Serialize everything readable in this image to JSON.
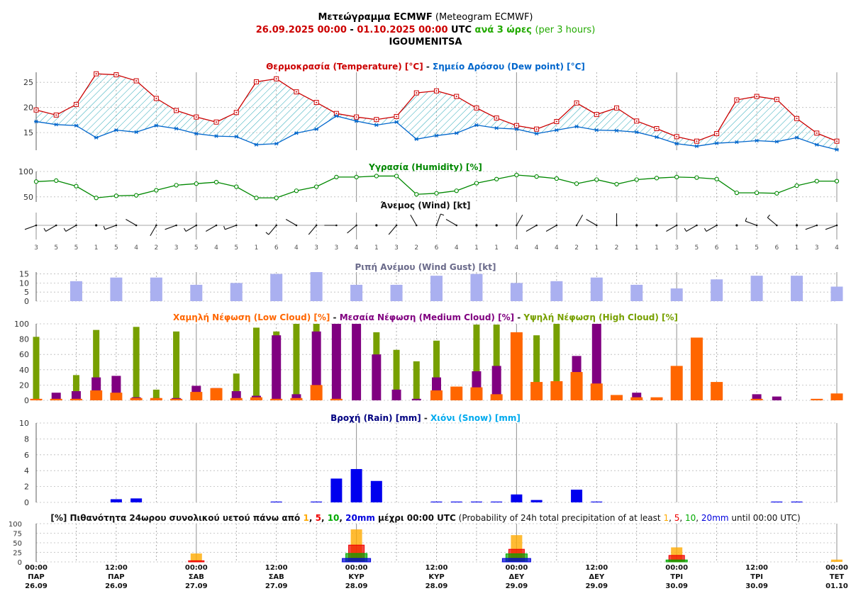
{
  "header": {
    "title_gr": "Μετεώγραμμα ECMWF",
    "title_en": "(Meteogram ECMWF)",
    "period_from": "26.09.2025 00:00",
    "dash": "-",
    "period_to": "01.10.2025 00:00",
    "utc": "UTC",
    "step_gr": "ανά 3 ώρες",
    "step_en": "(per 3 hours)",
    "location": "IGOUMENITSA"
  },
  "colors": {
    "temperature": "#cc0000",
    "dewpoint": "#0066cc",
    "humidity": "#008800",
    "gust": "#aab0f0",
    "low_cloud": "#ff6600",
    "medium_cloud": "#800080",
    "high_cloud": "#77a000",
    "rain": "#0000ee",
    "snow": "#00aaee",
    "prob_1mm": "#ffaa00",
    "prob_5mm": "#ee0000",
    "prob_10mm": "#00aa00",
    "prob_20mm": "#0000dd"
  },
  "time_axis": {
    "ticks": [
      {
        "time": "00:00",
        "day": "ΠΑΡ",
        "date": "26.09"
      },
      {
        "time": "12:00",
        "day": "ΠΑΡ",
        "date": "26.09"
      },
      {
        "time": "00:00",
        "day": "ΣΑΒ",
        "date": "27.09"
      },
      {
        "time": "12:00",
        "day": "ΣΑΒ",
        "date": "27.09"
      },
      {
        "time": "00:00",
        "day": "ΚΥΡ",
        "date": "28.09"
      },
      {
        "time": "12:00",
        "day": "ΚΥΡ",
        "date": "28.09"
      },
      {
        "time": "00:00",
        "day": "ΔΕΥ",
        "date": "29.09"
      },
      {
        "time": "12:00",
        "day": "ΔΕΥ",
        "date": "29.09"
      },
      {
        "time": "00:00",
        "day": "ΤΡΙ",
        "date": "30.09"
      },
      {
        "time": "12:00",
        "day": "ΤΡΙ",
        "date": "30.09"
      },
      {
        "time": "00:00",
        "day": "ΤΕΤ",
        "date": "01.10"
      }
    ]
  },
  "chart_data": [
    {
      "type": "line",
      "panel": "temperature",
      "title_parts": [
        "Θερμοκρασία (Temperature) [°C]",
        " - ",
        "Σημείο Δρόσου (Dew point) [°C]"
      ],
      "ylim": [
        11.5,
        27
      ],
      "yticks": [
        15,
        20,
        25
      ],
      "series": [
        {
          "name": "Θερμοκρασία (Temperature) [°C]",
          "values": [
            19.5,
            18.5,
            20.6,
            26.7,
            26.5,
            25.3,
            21.8,
            19.4,
            18.1,
            17.1,
            19.0,
            25.1,
            25.7,
            23.1,
            21.0,
            18.8,
            18.1,
            17.6,
            18.2,
            22.9,
            23.3,
            22.2,
            19.9,
            17.9,
            16.4,
            15.7,
            17.2,
            20.9,
            18.6,
            19.9,
            17.3,
            15.8,
            14.2,
            13.3,
            14.8,
            21.5,
            22.2,
            21.6,
            17.8,
            14.9,
            13.3
          ]
        },
        {
          "name": "Σημείο Δρόσου (Dew point) [°C]",
          "values": [
            17.2,
            16.6,
            16.4,
            14.0,
            15.5,
            15.1,
            16.4,
            15.8,
            14.8,
            14.3,
            14.2,
            12.6,
            12.8,
            14.9,
            15.7,
            18.3,
            17.3,
            16.5,
            17.1,
            13.7,
            14.4,
            14.9,
            16.5,
            15.9,
            15.7,
            14.8,
            15.5,
            16.2,
            15.5,
            15.4,
            15.1,
            14.1,
            12.8,
            12.3,
            12.9,
            13.1,
            13.4,
            13.2,
            14.0,
            12.6,
            11.6
          ]
        }
      ]
    },
    {
      "type": "line",
      "panel": "humidity",
      "title": "Υγρασία (Humidity) [%]",
      "ylim": [
        40,
        100
      ],
      "yticks": [
        50,
        100
      ],
      "series": [
        {
          "name": "Υγρασία (Humidity) [%]",
          "values": [
            80,
            82,
            71,
            48,
            52,
            53,
            63,
            73,
            76,
            79,
            70,
            48,
            48,
            62,
            70,
            89,
            89,
            91,
            91,
            55,
            57,
            62,
            77,
            85,
            93,
            90,
            86,
            76,
            84,
            75,
            84,
            87,
            89,
            88,
            85,
            58,
            58,
            57,
            72,
            81,
            81
          ]
        }
      ]
    },
    {
      "type": "wind",
      "panel": "wind",
      "title": "Άνεμος (Wind) [kt]",
      "speed_labels": [
        "3",
        "5",
        "5",
        "1",
        "5",
        "4",
        "2",
        "3",
        "5",
        "4",
        "5",
        "1",
        "6",
        "4",
        "3",
        "3",
        "4",
        "1",
        "3",
        "2",
        "6",
        "4",
        "1",
        "1",
        "4",
        "4",
        "4",
        "2",
        "1",
        "2",
        "1",
        "1",
        "3",
        "5",
        "6",
        "1",
        "5",
        "6",
        "1",
        "3",
        "4"
      ],
      "direction_deg": [
        250,
        240,
        240,
        0,
        250,
        300,
        210,
        250,
        240,
        240,
        250,
        0,
        220,
        300,
        220,
        270,
        230,
        0,
        220,
        330,
        20,
        300,
        0,
        0,
        30,
        240,
        240,
        30,
        300,
        0,
        0,
        0,
        240,
        240,
        240,
        0,
        290,
        310,
        0,
        250,
        250
      ]
    },
    {
      "type": "bar",
      "panel": "gust",
      "title": "Ριπή Ανέμου (Wind Gust) [kt]",
      "ylim": [
        0,
        16
      ],
      "yticks": [
        0,
        5,
        10,
        15
      ],
      "values": [
        11,
        13,
        13,
        9,
        10,
        15,
        16,
        9,
        9,
        14,
        15,
        10,
        11,
        13,
        9,
        7,
        12,
        14,
        14,
        8
      ]
    },
    {
      "type": "bar",
      "panel": "clouds",
      "title_parts": [
        "Χαμηλή Νέφωση (Low Cloud) [%]",
        " - ",
        "Μεσαία Νέφωση (Medium Cloud) [%]",
        " - ",
        "Υψηλή Νέφωση (High Cloud) [%]"
      ],
      "ylim": [
        0,
        100
      ],
      "yticks": [
        0,
        20,
        40,
        60,
        80,
        100
      ],
      "series": [
        {
          "name": "Υψηλή Νέφωση (High Cloud) [%]",
          "values": [
            83,
            0,
            33,
            92,
            0,
            96,
            14,
            90,
            0,
            0,
            35,
            95,
            90,
            100,
            100,
            0,
            0,
            89,
            66,
            51,
            78,
            0,
            99,
            99,
            0,
            85,
            100,
            0,
            0,
            0,
            0,
            0,
            0,
            0,
            0,
            0,
            0,
            0,
            0,
            0,
            0
          ]
        },
        {
          "name": "Μεσαία Νέφωση (Medium Cloud) [%]",
          "values": [
            0,
            10,
            12,
            30,
            32,
            4,
            3,
            3,
            19,
            16,
            12,
            6,
            85,
            8,
            90,
            100,
            100,
            60,
            14,
            2,
            30,
            0,
            38,
            45,
            0,
            0,
            0,
            58,
            100,
            0,
            10,
            0,
            0,
            0,
            0,
            0,
            8,
            5,
            0,
            0,
            0
          ]
        },
        {
          "name": "Χαμηλή Νέφωση (Low Cloud) [%]",
          "values": [
            2,
            2,
            2,
            13,
            10,
            3,
            3,
            2,
            11,
            16,
            3,
            4,
            2,
            3,
            20,
            2,
            0,
            0,
            0,
            0,
            13,
            18,
            17,
            8,
            89,
            24,
            25,
            37,
            22,
            7,
            4,
            4,
            45,
            82,
            24,
            0,
            2,
            0,
            0,
            2,
            9
          ]
        }
      ]
    },
    {
      "type": "bar",
      "panel": "precipitation",
      "title_parts": [
        "Βροχή (Rain) [mm]",
        " - ",
        "Χιόνι (Snow) [mm]"
      ],
      "ylim": [
        0,
        10
      ],
      "yticks": [
        0,
        2,
        4,
        6,
        8,
        10
      ],
      "series": [
        {
          "name": "Βροχή (Rain) [mm]",
          "values": [
            0,
            0,
            0,
            0,
            0.4,
            0.5,
            0,
            0,
            0,
            0,
            0,
            0,
            0.1,
            0,
            0.1,
            3.0,
            4.2,
            2.7,
            0,
            0,
            0.1,
            0.1,
            0.1,
            0.1,
            1.0,
            0.3,
            0,
            1.6,
            0.1,
            0,
            0,
            0,
            0,
            0,
            0,
            0,
            0,
            0.1,
            0.1,
            0,
            0
          ]
        },
        {
          "name": "Χιόνι (Snow) [mm]",
          "values": [
            0,
            0,
            0,
            0,
            0,
            0,
            0,
            0,
            0,
            0,
            0,
            0,
            0,
            0,
            0,
            0,
            0,
            0,
            0,
            0,
            0,
            0,
            0,
            0,
            0,
            0,
            0,
            0,
            0,
            0,
            0,
            0,
            0,
            0,
            0,
            0,
            0,
            0,
            0,
            0,
            0
          ]
        }
      ]
    },
    {
      "type": "bar",
      "panel": "probability",
      "title_parts": [
        {
          "text": "[%] Πιθανότητα 24ωρου συνολικού υετού πάνω από ",
          "style": "bold"
        },
        {
          "text": "1",
          "style": "bold",
          "color": "#ffaa00"
        },
        {
          "text": ", ",
          "style": "bold"
        },
        {
          "text": "5",
          "style": "bold",
          "color": "#ee0000"
        },
        {
          "text": ", ",
          "style": "bold"
        },
        {
          "text": "10",
          "style": "bold",
          "color": "#00aa00"
        },
        {
          "text": ", ",
          "style": "bold"
        },
        {
          "text": "20mm",
          "style": "bold",
          "color": "#0000dd"
        },
        {
          "text": " μέχρι 00:00 UTC",
          "style": "bold"
        },
        {
          "text": " (Probability of 24h total precipitation of at least "
        },
        {
          "text": "1",
          "color": "#ffaa00"
        },
        {
          "text": ", "
        },
        {
          "text": "5",
          "color": "#ee0000"
        },
        {
          "text": ", "
        },
        {
          "text": "10",
          "color": "#00aa00"
        },
        {
          "text": ", "
        },
        {
          "text": "20mm",
          "color": "#0000dd"
        },
        {
          "text": " until 00:00 UTC)"
        }
      ],
      "ylim": [
        0,
        100
      ],
      "yticks": [
        0,
        25,
        50,
        75,
        100
      ],
      "categories": [
        "27.09 00:00",
        "28.09 00:00",
        "29.09 00:00",
        "30.09 00:00",
        "01.10 00:00"
      ],
      "series": [
        {
          "name": "1mm",
          "values": [
            22,
            85,
            70,
            38,
            6
          ]
        },
        {
          "name": "5mm",
          "values": [
            3,
            44,
            33,
            17,
            0
          ]
        },
        {
          "name": "10mm",
          "values": [
            0,
            22,
            21,
            5,
            0
          ]
        },
        {
          "name": "20mm",
          "values": [
            0,
            9,
            9,
            0,
            0
          ]
        }
      ]
    }
  ]
}
